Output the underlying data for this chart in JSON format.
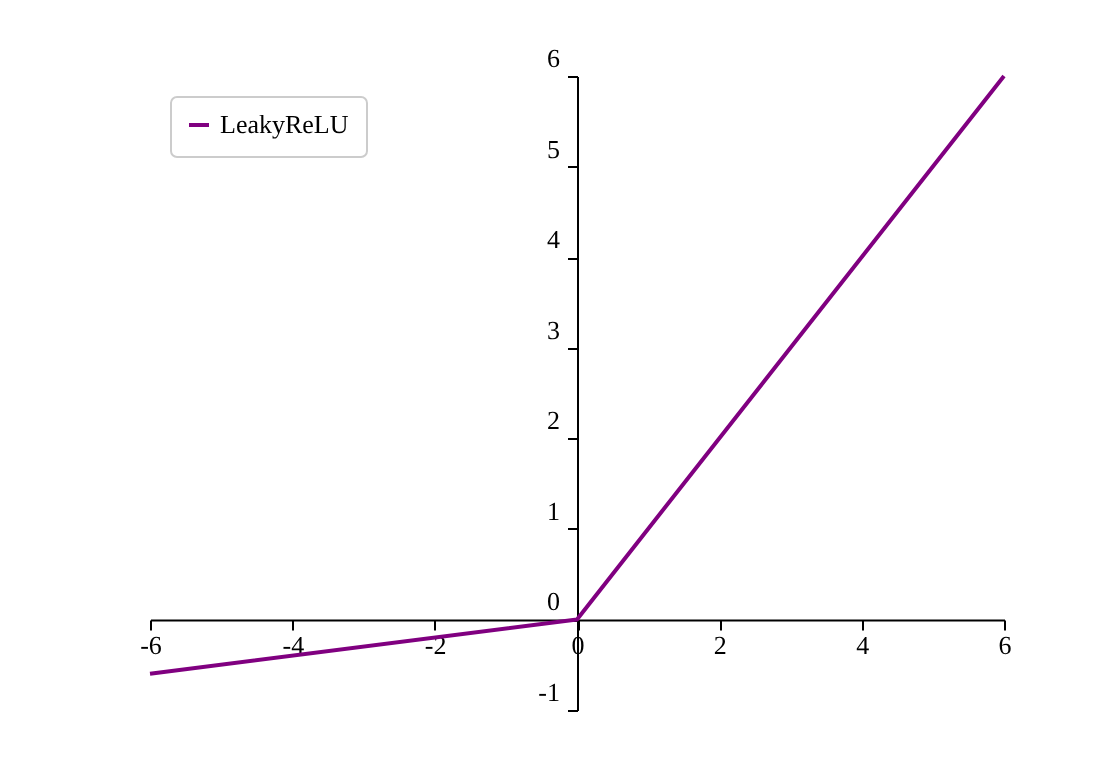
{
  "chart_data": {
    "type": "line",
    "x": [
      -6,
      0,
      6
    ],
    "series": [
      {
        "name": "LeakyReLU",
        "color": "#800080",
        "values": [
          -0.6,
          0,
          6
        ]
      }
    ],
    "xlim": [
      -6,
      6
    ],
    "ylim": [
      -1,
      6
    ],
    "xticks": [
      -6,
      -4,
      -2,
      0,
      2,
      4,
      6
    ],
    "yticks": [
      -1,
      0,
      1,
      2,
      3,
      4,
      5,
      6
    ],
    "grid": false,
    "legend": "top left",
    "marker": "none",
    "line_style": "solid"
  }
}
